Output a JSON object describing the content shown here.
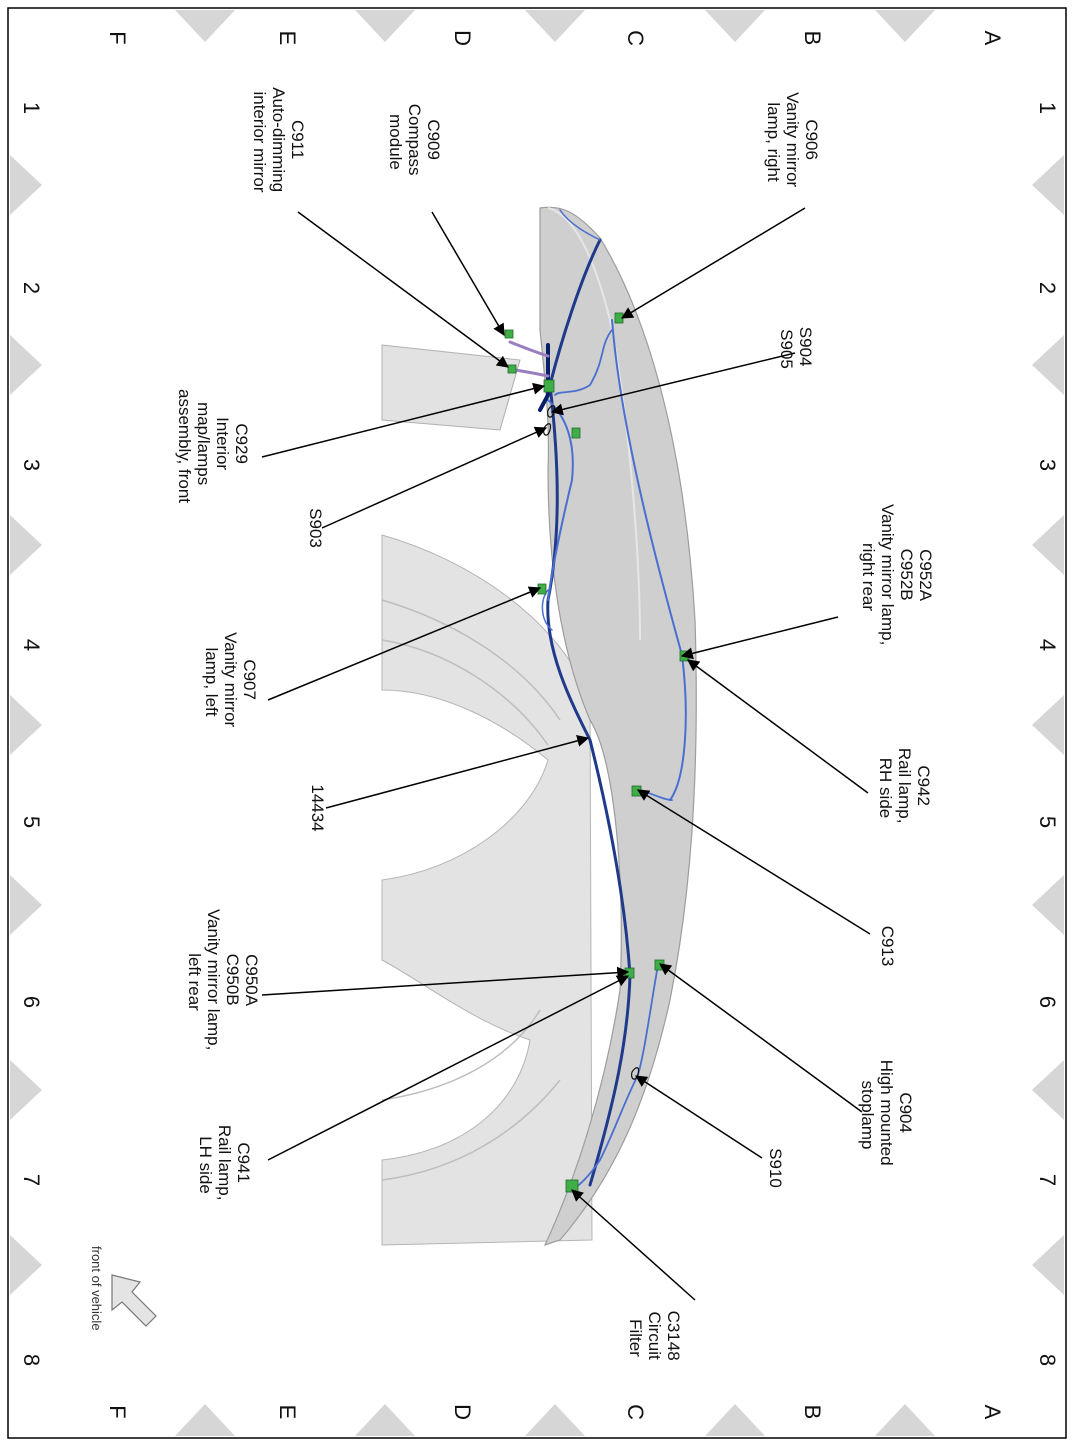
{
  "grid": {
    "rows": [
      "A",
      "B",
      "C",
      "D",
      "E",
      "F"
    ],
    "cols": [
      "1",
      "2",
      "3",
      "4",
      "5",
      "6",
      "7",
      "8"
    ]
  },
  "labels": {
    "c906": [
      "C906",
      "Vanity mirror",
      "lamp, right"
    ],
    "c909": [
      "C909",
      "Compass",
      "module"
    ],
    "c911": [
      "C911",
      "Auto-dimming",
      "interior mirror"
    ],
    "s904": [
      "S904",
      "S905"
    ],
    "c929": [
      "C929",
      "Interior",
      "map/lamps",
      "assembly, front"
    ],
    "s903": [
      "S903"
    ],
    "c952": [
      "C952A",
      "C952B",
      "Vanity mirror lamp,",
      "right rear"
    ],
    "c907": [
      "C907",
      "Vanity mirror",
      "lamp, left"
    ],
    "c942": [
      "C942",
      "Rail lamp,",
      "RH side"
    ],
    "h14434": [
      "14434"
    ],
    "c913": [
      "C913"
    ],
    "c950": [
      "C950A",
      "C950B",
      "Vanity mirror lamp,",
      "left rear"
    ],
    "c904": [
      "C904",
      "High mounted",
      "stoplamp"
    ],
    "c941": [
      "C941",
      "Rail lamp,",
      "LH side"
    ],
    "s910": [
      "S910"
    ],
    "c3148": [
      "C3148",
      "Circuit",
      "Filter"
    ]
  },
  "front_of_vehicle": "front of vehicle",
  "colors": {
    "border": "#000000",
    "triangle": "#d6d6d6",
    "roof": "#cdcdcd",
    "roof_light": "#e4e4e4",
    "harness_dark": "#1f3a8a",
    "harness_light": "#4a6fd0",
    "connector": "#3fae49",
    "text": "#111111"
  }
}
